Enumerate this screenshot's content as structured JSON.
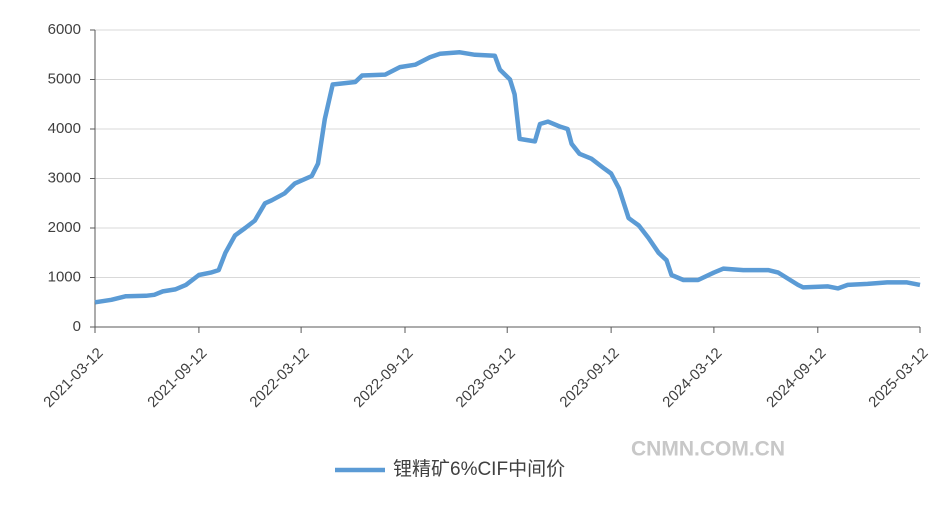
{
  "chart_data": {
    "type": "line",
    "x": [
      "2021-03-12",
      "2021-04-10",
      "2021-05-05",
      "2021-06-10",
      "2021-06-25",
      "2021-07-10",
      "2021-08-01",
      "2021-08-20",
      "2021-09-12",
      "2021-10-03",
      "2021-10-17",
      "2021-10-29",
      "2021-11-15",
      "2021-12-03",
      "2021-12-20",
      "2022-01-07",
      "2022-01-19",
      "2022-02-11",
      "2022-03-01",
      "2022-03-31",
      "2022-04-11",
      "2022-04-23",
      "2022-05-07",
      "2022-06-16",
      "2022-06-28",
      "2022-08-08",
      "2022-09-03",
      "2022-09-30",
      "2022-10-26",
      "2022-11-13",
      "2022-12-18",
      "2023-01-14",
      "2023-02-18",
      "2023-02-27",
      "2023-03-17",
      "2023-03-25",
      "2023-04-03",
      "2023-04-30",
      "2023-05-09",
      "2023-05-23",
      "2023-06-13",
      "2023-06-27",
      "2023-07-04",
      "2023-07-18",
      "2023-08-08",
      "2023-08-31",
      "2023-09-12",
      "2023-09-26",
      "2023-10-13",
      "2023-10-31",
      "2023-11-17",
      "2023-12-05",
      "2023-12-19",
      "2023-12-28",
      "2024-01-18",
      "2024-02-13",
      "2024-03-12",
      "2024-03-29",
      "2024-05-03",
      "2024-06-16",
      "2024-07-04",
      "2024-08-08",
      "2024-08-17",
      "2024-09-30",
      "2024-10-18",
      "2024-11-04",
      "2024-12-09",
      "2025-01-13",
      "2025-02-17",
      "2025-03-12"
    ],
    "series": [
      {
        "name": "锂精矿6%CIF中间价",
        "color": "#5b9bd5",
        "values": [
          500,
          550,
          620,
          630,
          650,
          720,
          760,
          850,
          1050,
          1100,
          1150,
          1500,
          1850,
          2000,
          2150,
          2500,
          2560,
          2700,
          2900,
          3050,
          3300,
          4200,
          4900,
          4950,
          5080,
          5100,
          5250,
          5300,
          5450,
          5520,
          5550,
          5500,
          5480,
          5200,
          5000,
          4700,
          3800,
          3750,
          4100,
          4150,
          4050,
          4000,
          3700,
          3500,
          3400,
          3200,
          3100,
          2800,
          2200,
          2050,
          1800,
          1500,
          1350,
          1050,
          950,
          950,
          1100,
          1180,
          1150,
          1150,
          1100,
          850,
          800,
          820,
          780,
          850,
          870,
          900,
          900,
          850
        ]
      }
    ],
    "xlim": [
      "2021-03-12",
      "2025-03-12"
    ],
    "xticks": [
      "2021-03-12",
      "2021-09-12",
      "2022-03-12",
      "2022-09-12",
      "2023-03-12",
      "2023-09-12",
      "2024-03-12",
      "2024-09-12",
      "2025-03-12"
    ],
    "ylim": [
      0,
      6000
    ],
    "yticks": [
      0,
      1000,
      2000,
      3000,
      4000,
      5000,
      6000
    ],
    "grid": true,
    "legend": "bottom",
    "watermark": "CNMN.COM.CN"
  }
}
